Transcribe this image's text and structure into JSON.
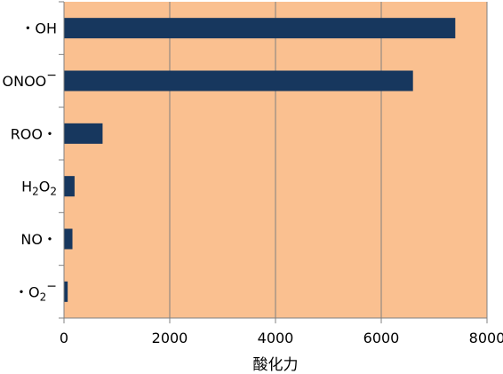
{
  "chart_data": {
    "type": "bar",
    "orientation": "horizontal",
    "categories": [
      {
        "base": "・OH",
        "sub": "",
        "tail": "",
        "sup": ""
      },
      {
        "base": "ONOO",
        "sub": "",
        "tail": "",
        "sup": "−"
      },
      {
        "base": "ROO・",
        "sub": "",
        "tail": "",
        "sup": ""
      },
      {
        "base": "H",
        "sub": "2",
        "tail": "O",
        "sub2": "2",
        "sup": ""
      },
      {
        "base": "NO・",
        "sub": "",
        "tail": "",
        "sup": ""
      },
      {
        "base": "・O",
        "sub": "2",
        "tail": "",
        "sup": "−"
      }
    ],
    "values": [
      7400,
      6600,
      730,
      200,
      160,
      70
    ],
    "xlabel": "酸化力",
    "xlim": [
      0,
      8000
    ],
    "xticks": [
      0,
      2000,
      4000,
      6000,
      8000
    ],
    "grid": "vertical",
    "colors": {
      "bar": "#17375e",
      "plot_background": "#fac090",
      "grid": "#808080",
      "axis": "#808080"
    }
  }
}
